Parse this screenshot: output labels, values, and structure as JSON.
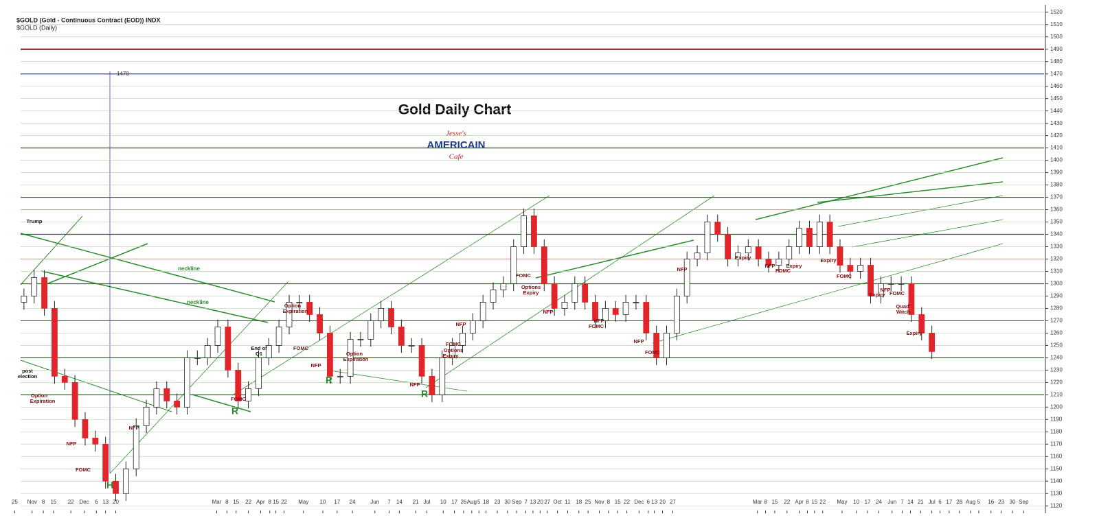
{
  "chart_data": {
    "type": "candlestick",
    "header": "$GOLD (Gold - Continuous Contract (EOD)) INDX",
    "subheader": "$GOLD (Daily)",
    "title": "Gold Daily Chart",
    "logo": [
      "Jesse's",
      "AMERICAIN",
      "Cafe"
    ],
    "up_color": "#ffffff",
    "down_color": "#e0262b",
    "grid": true,
    "grid_color": "#b8d8b0",
    "open": [
      1285,
      1290,
      1305,
      1280,
      1225,
      1220,
      1190,
      1175,
      1170,
      1140,
      1130,
      1150,
      1185,
      1200,
      1215,
      1205,
      1200,
      1240,
      1240,
      1250,
      1265,
      1230,
      1205,
      1215,
      1240,
      1250,
      1265,
      1285,
      1285,
      1275,
      1260,
      1225,
      1225,
      1255,
      1255,
      1270,
      1280,
      1265,
      1250,
      1250,
      1225,
      1210,
      1240,
      1250,
      1260,
      1270,
      1285,
      1295,
      1300,
      1330,
      1355,
      1330,
      1300,
      1280,
      1285,
      1300,
      1285,
      1270,
      1280,
      1275,
      1285,
      1285,
      1260,
      1240,
      1260,
      1290,
      1320,
      1325,
      1350,
      1340,
      1320,
      1325,
      1330,
      1320,
      1315,
      1320,
      1330,
      1345,
      1330,
      1350,
      1330,
      1315,
      1310,
      1315,
      1290,
      1300,
      1300,
      1300,
      1275,
      1260
    ],
    "high": [
      1296,
      1311,
      1311,
      1286,
      1231,
      1226,
      1196,
      1181,
      1176,
      1146,
      1156,
      1191,
      1206,
      1221,
      1221,
      1211,
      1246,
      1246,
      1256,
      1271,
      1271,
      1236,
      1221,
      1246,
      1256,
      1271,
      1291,
      1291,
      1291,
      1281,
      1266,
      1231,
      1261,
      1261,
      1276,
      1286,
      1286,
      1271,
      1256,
      1256,
      1231,
      1246,
      1256,
      1266,
      1276,
      1291,
      1301,
      1306,
      1336,
      1361,
      1361,
      1336,
      1306,
      1291,
      1306,
      1306,
      1291,
      1286,
      1286,
      1291,
      1291,
      1291,
      1266,
      1266,
      1296,
      1326,
      1331,
      1356,
      1356,
      1346,
      1331,
      1336,
      1336,
      1326,
      1326,
      1336,
      1351,
      1351,
      1356,
      1356,
      1336,
      1321,
      1321,
      1321,
      1306,
      1306,
      1306,
      1306,
      1281,
      1266
    ],
    "low": [
      1279,
      1284,
      1274,
      1219,
      1214,
      1184,
      1169,
      1164,
      1134,
      1124,
      1124,
      1144,
      1179,
      1194,
      1199,
      1194,
      1194,
      1234,
      1234,
      1244,
      1224,
      1199,
      1199,
      1209,
      1234,
      1244,
      1259,
      1279,
      1269,
      1254,
      1219,
      1219,
      1219,
      1249,
      1249,
      1264,
      1259,
      1244,
      1244,
      1219,
      1204,
      1204,
      1234,
      1244,
      1254,
      1264,
      1279,
      1289,
      1294,
      1324,
      1324,
      1294,
      1274,
      1274,
      1279,
      1279,
      1264,
      1264,
      1269,
      1269,
      1279,
      1254,
      1234,
      1234,
      1254,
      1284,
      1314,
      1319,
      1334,
      1314,
      1314,
      1319,
      1314,
      1309,
      1309,
      1314,
      1324,
      1324,
      1324,
      1324,
      1309,
      1304,
      1304,
      1284,
      1284,
      1294,
      1294,
      1269,
      1254,
      1239
    ],
    "close": [
      1290,
      1305,
      1280,
      1225,
      1220,
      1190,
      1175,
      1170,
      1140,
      1130,
      1150,
      1185,
      1200,
      1215,
      1205,
      1200,
      1240,
      1240,
      1250,
      1265,
      1230,
      1205,
      1215,
      1240,
      1250,
      1265,
      1285,
      1285,
      1275,
      1260,
      1225,
      1225,
      1255,
      1255,
      1270,
      1280,
      1265,
      1250,
      1250,
      1225,
      1210,
      1240,
      1250,
      1260,
      1270,
      1285,
      1295,
      1300,
      1330,
      1355,
      1330,
      1300,
      1280,
      1285,
      1300,
      1285,
      1270,
      1280,
      1275,
      1285,
      1285,
      1260,
      1240,
      1260,
      1290,
      1320,
      1325,
      1350,
      1340,
      1320,
      1325,
      1330,
      1320,
      1315,
      1320,
      1330,
      1345,
      1330,
      1350,
      1330,
      1315,
      1310,
      1315,
      1290,
      1300,
      1300,
      1300,
      1275,
      1260,
      1245
    ],
    "xlim": [
      -1,
      100
    ],
    "xticks": [
      {
        "value": -0.9,
        "label": "25"
      },
      {
        "value": 0.8,
        "label": "Nov"
      },
      {
        "value": 1.9,
        "label": "8"
      },
      {
        "value": 2.9,
        "label": "15"
      },
      {
        "value": 4.6,
        "label": "22"
      },
      {
        "value": 5.9,
        "label": "Dec"
      },
      {
        "value": 7.1,
        "label": "6"
      },
      {
        "value": 8.0,
        "label": "13"
      },
      {
        "value": 9.0,
        "label": "20"
      },
      {
        "value": 18.9,
        "label": "Mar"
      },
      {
        "value": 19.9,
        "label": "8"
      },
      {
        "value": 20.8,
        "label": "15"
      },
      {
        "value": 22.0,
        "label": "22"
      },
      {
        "value": 23.2,
        "label": "Apr"
      },
      {
        "value": 24.1,
        "label": "8"
      },
      {
        "value": 24.7,
        "label": "15"
      },
      {
        "value": 25.5,
        "label": "22"
      },
      {
        "value": 27.4,
        "label": "May"
      },
      {
        "value": 29.3,
        "label": "10"
      },
      {
        "value": 30.7,
        "label": "17"
      },
      {
        "value": 32.2,
        "label": "24"
      },
      {
        "value": 34.4,
        "label": "Jun"
      },
      {
        "value": 35.8,
        "label": "7"
      },
      {
        "value": 36.8,
        "label": "14"
      },
      {
        "value": 38.4,
        "label": "21"
      },
      {
        "value": 39.5,
        "label": "Jul"
      },
      {
        "value": 41.1,
        "label": "10"
      },
      {
        "value": 42.2,
        "label": "17"
      },
      {
        "value": 43.1,
        "label": "26"
      },
      {
        "value": 43.9,
        "label": "Aug"
      },
      {
        "value": 44.6,
        "label": "5"
      },
      {
        "value": 45.3,
        "label": "18"
      },
      {
        "value": 46.4,
        "label": "23"
      },
      {
        "value": 47.4,
        "label": "30"
      },
      {
        "value": 48.3,
        "label": "Sep"
      },
      {
        "value": 49.2,
        "label": "7"
      },
      {
        "value": 49.9,
        "label": "13"
      },
      {
        "value": 50.6,
        "label": "20"
      },
      {
        "value": 51.3,
        "label": "27"
      },
      {
        "value": 52.3,
        "label": "Oct"
      },
      {
        "value": 53.3,
        "label": "11"
      },
      {
        "value": 54.4,
        "label": "18"
      },
      {
        "value": 55.3,
        "label": "25"
      },
      {
        "value": 56.4,
        "label": "Nov"
      },
      {
        "value": 57.3,
        "label": "8"
      },
      {
        "value": 58.2,
        "label": "15"
      },
      {
        "value": 59.1,
        "label": "22"
      },
      {
        "value": 60.3,
        "label": "Dec"
      },
      {
        "value": 61.2,
        "label": "6"
      },
      {
        "value": 61.8,
        "label": "13"
      },
      {
        "value": 62.6,
        "label": "20"
      },
      {
        "value": 63.6,
        "label": "27"
      },
      {
        "value": 71.9,
        "label": "Mar"
      },
      {
        "value": 72.7,
        "label": "8"
      },
      {
        "value": 73.6,
        "label": "15"
      },
      {
        "value": 74.8,
        "label": "22"
      },
      {
        "value": 76.0,
        "label": "Apr"
      },
      {
        "value": 76.8,
        "label": "8"
      },
      {
        "value": 77.5,
        "label": "15"
      },
      {
        "value": 78.3,
        "label": "22"
      },
      {
        "value": 80.2,
        "label": "May"
      },
      {
        "value": 81.6,
        "label": "10"
      },
      {
        "value": 82.7,
        "label": "17"
      },
      {
        "value": 83.8,
        "label": "24"
      },
      {
        "value": 85.1,
        "label": "Jun"
      },
      {
        "value": 86.1,
        "label": "7"
      },
      {
        "value": 86.9,
        "label": "14"
      },
      {
        "value": 87.9,
        "label": "21"
      },
      {
        "value": 89.0,
        "label": "Jul"
      },
      {
        "value": 89.8,
        "label": "6"
      },
      {
        "value": 90.7,
        "label": "17"
      },
      {
        "value": 91.7,
        "label": "28"
      },
      {
        "value": 92.8,
        "label": "Aug"
      },
      {
        "value": 93.6,
        "label": "5"
      },
      {
        "value": 94.8,
        "label": "16"
      },
      {
        "value": 95.8,
        "label": "23"
      },
      {
        "value": 96.9,
        "label": "30"
      },
      {
        "value": 98.0,
        "label": "Sep"
      }
    ],
    "ylim": [
      1114,
      1526
    ],
    "yticks": [
      1120,
      1130,
      1140,
      1150,
      1160,
      1170,
      1180,
      1190,
      1200,
      1210,
      1220,
      1230,
      1240,
      1250,
      1260,
      1270,
      1280,
      1290,
      1300,
      1310,
      1320,
      1330,
      1340,
      1350,
      1360,
      1370,
      1380,
      1390,
      1400,
      1410,
      1420,
      1430,
      1440,
      1450,
      1460,
      1470,
      1480,
      1490,
      1500,
      1510,
      1520
    ],
    "levels": [
      {
        "value": 1490,
        "color": "#7b1414"
      },
      {
        "value": 1470,
        "color": "#3a3ad8"
      },
      {
        "value": 1410,
        "color": "#1e6e1e"
      },
      {
        "value": 1370,
        "color": "#1e6e1e"
      },
      {
        "value": 1360,
        "color": "#e89a9a"
      },
      {
        "value": 1340,
        "color": "#1e6e1e"
      },
      {
        "value": 1320,
        "color": "#e89a9a"
      },
      {
        "value": 1300,
        "color": "#1e6e1e"
      },
      {
        "value": 1270,
        "color": "#1e6e1e"
      },
      {
        "value": 1240,
        "color": "#1e6e1e"
      },
      {
        "value": 1210,
        "color": "#1e6e1e"
      }
    ],
    "annotations": [
      "Trump",
      "post",
      "election",
      "Option",
      "Expiration",
      "NFP",
      "FOMC",
      "H",
      "neckline",
      "neckline",
      "NFP",
      "FOMC",
      "R",
      "End of",
      "Q1",
      "Option",
      "Expiration",
      "FOMC",
      "NFP",
      "R",
      "Option",
      "Expiration",
      "NFP",
      "R",
      "FOMC",
      "Options",
      "Expiry",
      "NFP",
      "FOMC",
      "Options",
      "Expiry",
      "NFP",
      "NFP",
      "FOMC",
      "NFP",
      "FOMC",
      "NFP",
      "Expiry",
      "NFP",
      "FOMC",
      "Expiry",
      "Expiry",
      "FOMC",
      "Expiry",
      "NFP",
      "FOMC",
      "Quad",
      "Witch",
      "Expiry"
    ]
  }
}
